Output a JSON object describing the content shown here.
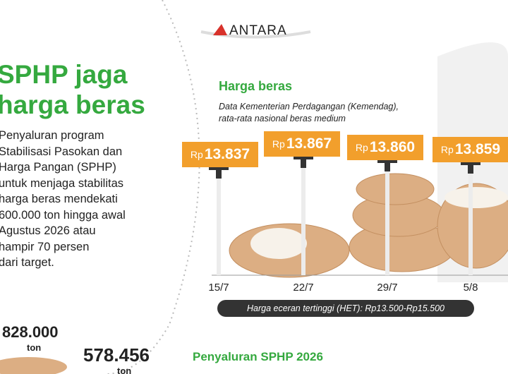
{
  "header": {
    "logo": "ANTARA"
  },
  "title": [
    "SPHP jaga",
    "harga beras"
  ],
  "description": [
    "Penyaluran program",
    "Stabilisasi Pasokan dan",
    "Harga Pangan (SPHP)",
    "untuk menjaga stabilitas",
    "harga beras mendekati",
    "600.000 ton hingga awal",
    "Agustus 2026 atau",
    "hampir 70 persen",
    "dari target."
  ],
  "price_chart": {
    "title": "Harga beras",
    "subtitle": [
      "Data Kementerian Perdagangan (Kemendag),",
      "rata-rata nasional beras medium"
    ],
    "points": [
      {
        "prefix": "Rp",
        "price": "13.837",
        "date": "15/7"
      },
      {
        "prefix": "Rp",
        "price": "13.867",
        "date": "22/7"
      },
      {
        "prefix": "Rp",
        "price": "13.860",
        "date": "29/7"
      },
      {
        "prefix": "Rp",
        "price": "13.859",
        "date": "5/8"
      }
    ],
    "note": "Harga eceran tertinggi (HET): Rp13.500-Rp15.500"
  },
  "distribution": {
    "target": "828.000",
    "target_unit": "ton",
    "realized": "578.456",
    "realized_unit": "ton",
    "title": "Penyaluran SPHP 2026"
  }
}
